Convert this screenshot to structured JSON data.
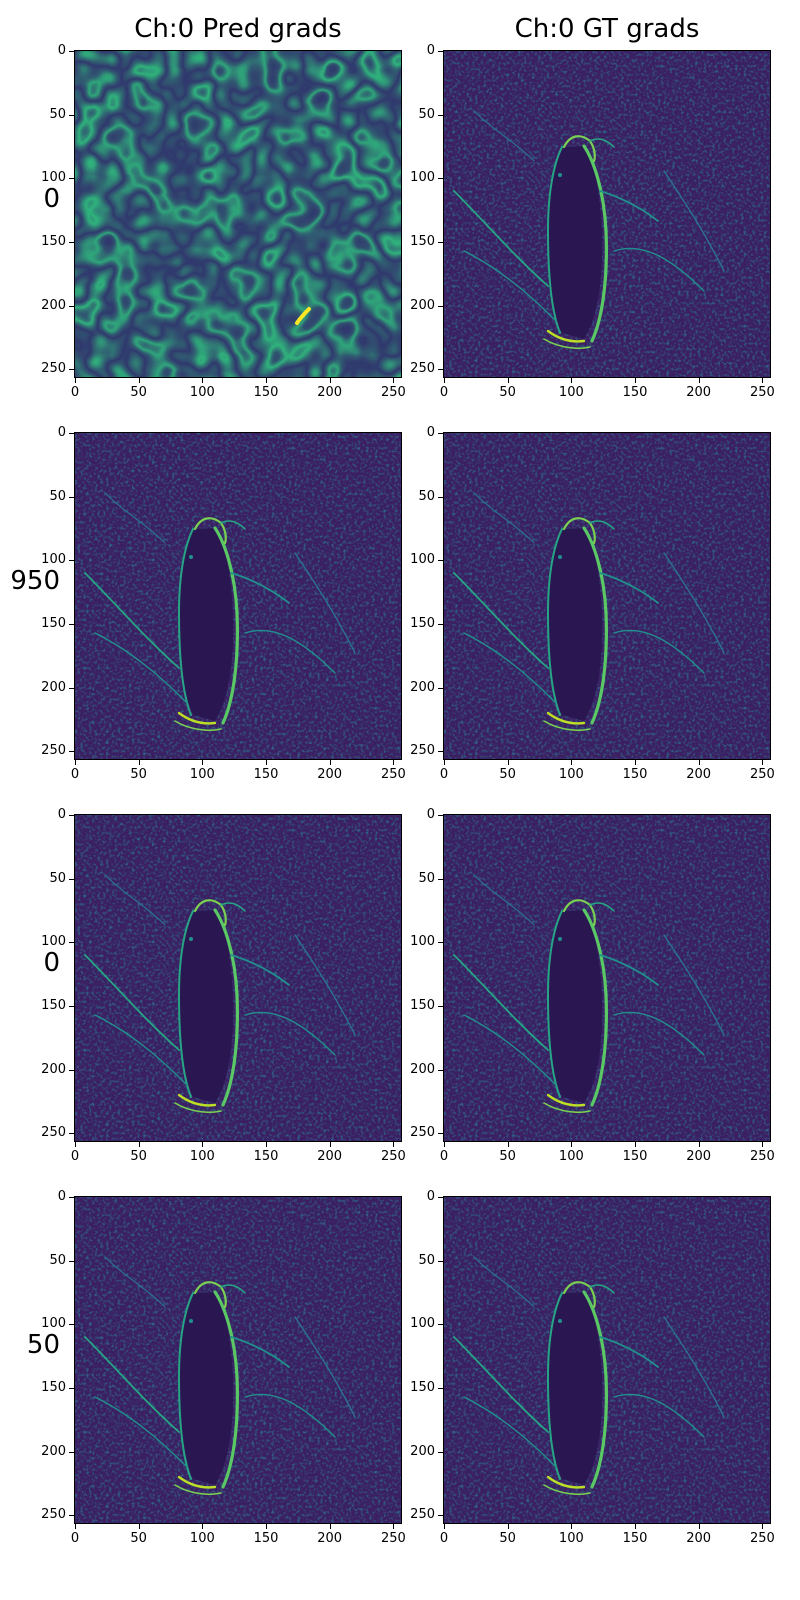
{
  "chart_data": {
    "type": "heatmap",
    "colormap": "viridis",
    "column_titles": [
      "Ch:0 Pred grads",
      "Ch:0 GT grads"
    ],
    "row_labels": [
      "0",
      "950",
      "0",
      "50"
    ],
    "x_ticks": [
      0,
      50,
      100,
      150,
      200,
      250
    ],
    "y_ticks": [
      0,
      50,
      100,
      150,
      200,
      250
    ],
    "xlim": [
      0,
      256
    ],
    "ylim": [
      256,
      0
    ],
    "panels": [
      {
        "row": 0,
        "col": 0,
        "content": "noise"
      },
      {
        "row": 0,
        "col": 1,
        "content": "penguin-edges"
      },
      {
        "row": 1,
        "col": 0,
        "content": "penguin-edges"
      },
      {
        "row": 1,
        "col": 1,
        "content": "penguin-edges"
      },
      {
        "row": 2,
        "col": 0,
        "content": "penguin-edges"
      },
      {
        "row": 2,
        "col": 1,
        "content": "penguin-edges"
      },
      {
        "row": 3,
        "col": 0,
        "content": "penguin-edges"
      },
      {
        "row": 3,
        "col": 1,
        "content": "penguin-edges"
      }
    ]
  }
}
